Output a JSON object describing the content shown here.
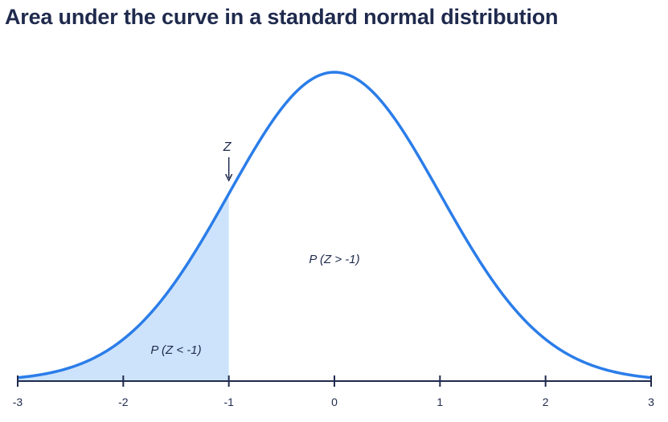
{
  "chart_data": {
    "type": "area",
    "title": "Area under the curve in a standard normal distribution",
    "distribution": "standard-normal",
    "mean": 0,
    "sd": 1,
    "xlim": [
      -3,
      3
    ],
    "x_ticks": [
      -3,
      -2,
      -1,
      0,
      1,
      2,
      3
    ],
    "x_tick_labels": [
      "-3",
      "-2",
      "-1",
      "0",
      "1",
      "2",
      "3"
    ],
    "shaded_region": {
      "from": -3,
      "to": -1,
      "label": "P (Z < -1)"
    },
    "unshaded_label": "P (Z > -1)",
    "marker": {
      "x": -1,
      "label": "Z"
    },
    "grid": false,
    "colors": {
      "curve": "#2b7de9",
      "shade": "#cde3fb",
      "text": "#1f2a4d",
      "axis": "#1f2a4d"
    }
  }
}
